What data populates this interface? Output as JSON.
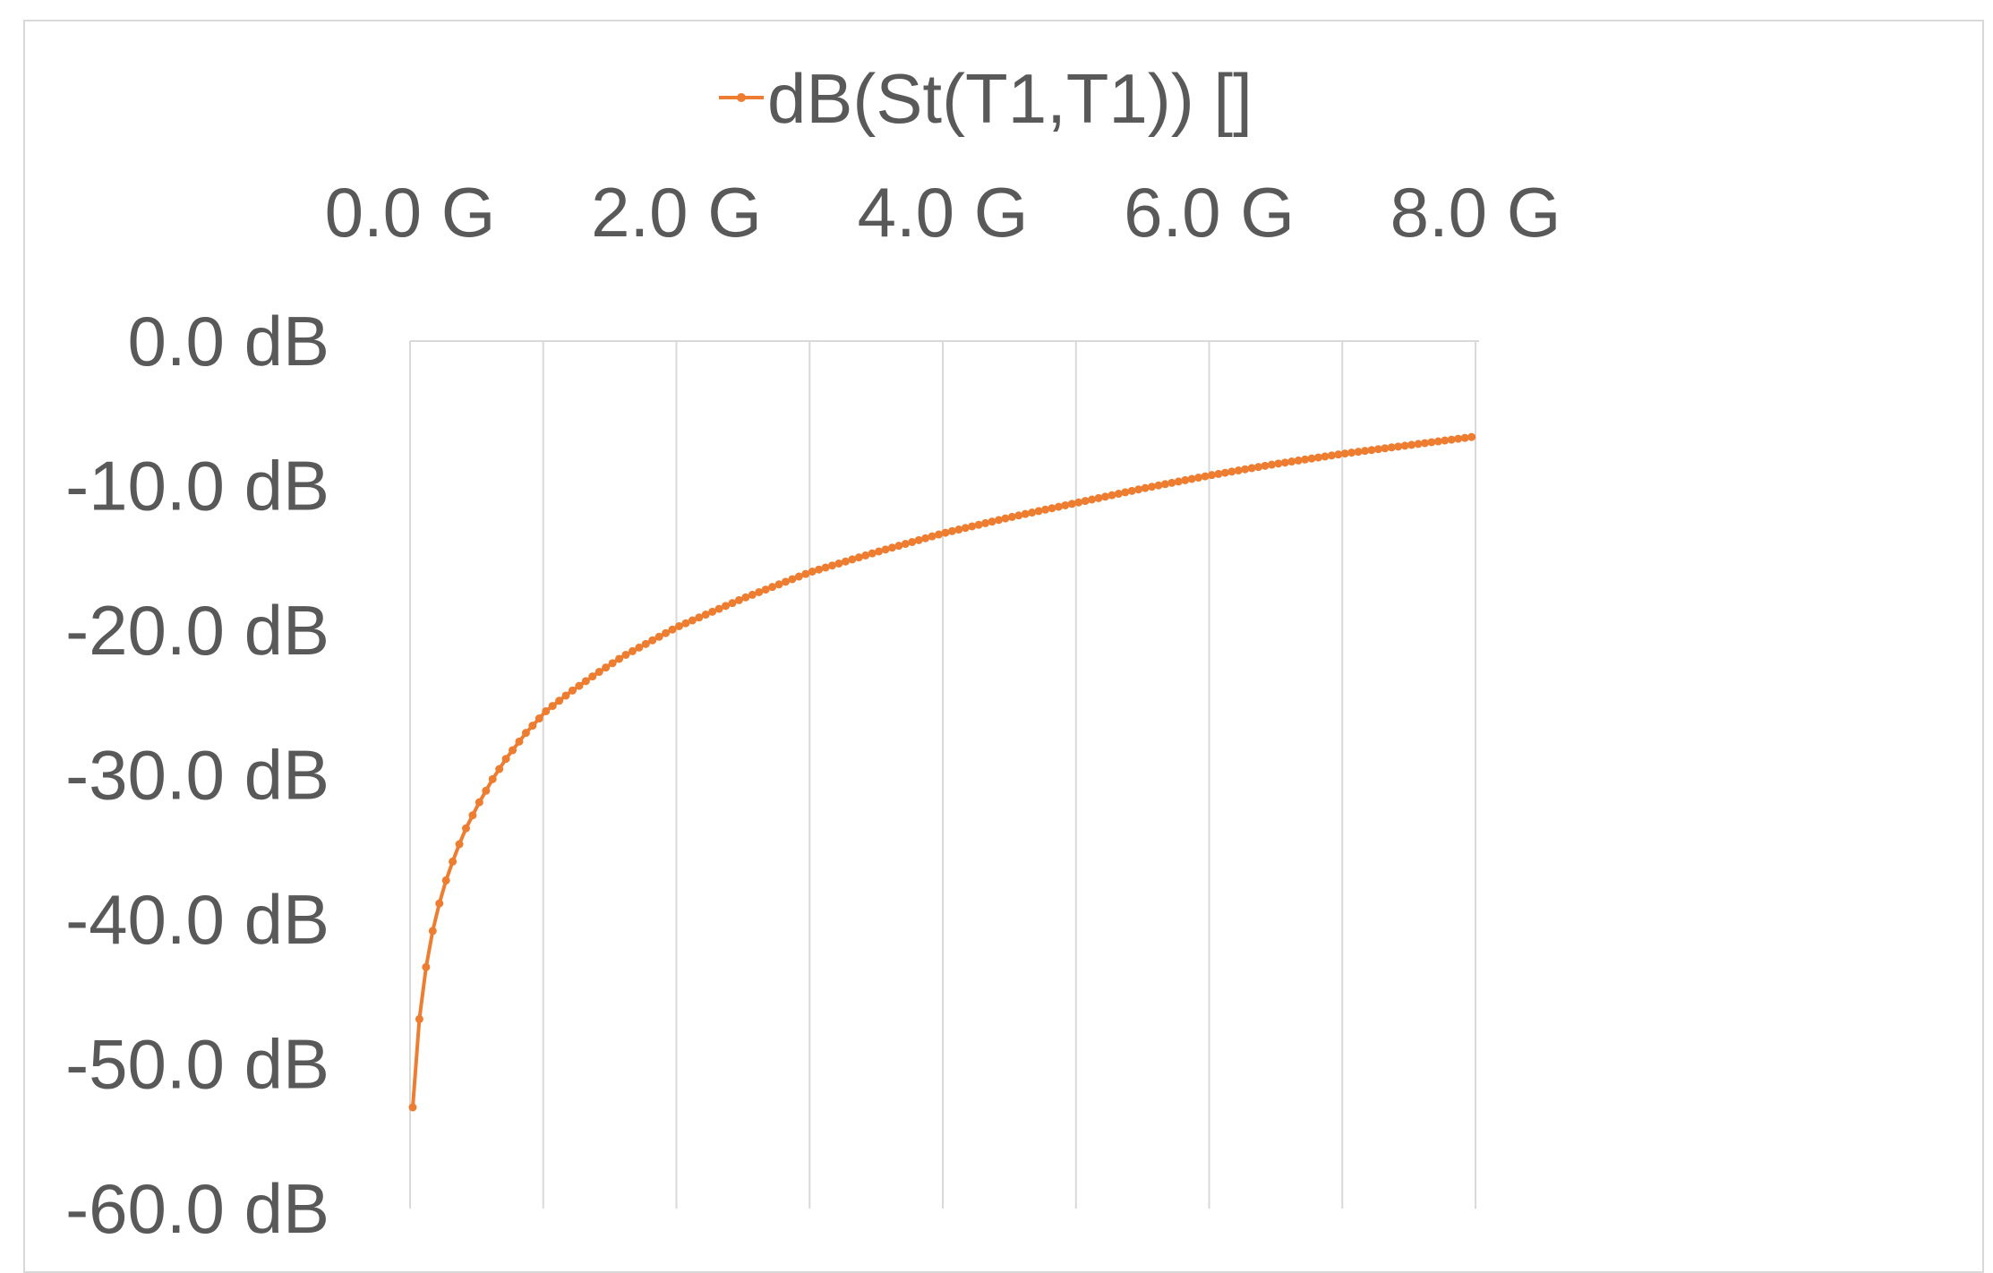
{
  "chart_data": {
    "type": "line",
    "title": "",
    "xlabel": "",
    "ylabel": "",
    "x_axis_position": "top",
    "xlim": [
      0.0,
      8.0
    ],
    "ylim": [
      -60.0,
      0.0
    ],
    "x_ticks": [
      0,
      1,
      2,
      3,
      4,
      5,
      6,
      7,
      8
    ],
    "x_tick_labels": [
      "0.0 G",
      "2.0 G",
      "4.0 G",
      "6.0 G",
      "8.0 G"
    ],
    "x_tick_label_values": [
      0,
      2,
      4,
      6,
      8
    ],
    "y_ticks": [
      0,
      -10,
      -20,
      -30,
      -40,
      -50,
      -60
    ],
    "y_tick_labels": [
      "0.0 dB",
      "-10.0 dB",
      "-20.0 dB",
      "-30.0 dB",
      "-40.0 dB",
      "-50.0 dB",
      "-60.0 dB"
    ],
    "grid": {
      "vertical": true,
      "horizontal": false
    },
    "legend": {
      "position": "top",
      "entries": [
        "dB(St(T1,T1)) []"
      ]
    },
    "series": [
      {
        "name": "dB(St(T1,T1)) []",
        "color": "#ED7D31",
        "marker": "circle",
        "x": [
          0.02,
          0.07,
          0.12,
          0.17,
          0.22,
          0.27,
          0.32,
          0.37,
          0.42,
          0.47,
          0.52,
          0.57,
          0.62,
          0.67,
          0.72,
          0.77,
          0.82,
          0.87,
          0.92,
          0.97,
          1.02,
          1.2,
          1.4,
          1.6,
          1.8,
          2.0,
          2.5,
          3.0,
          3.5,
          4.0,
          4.5,
          5.0,
          5.5,
          6.0,
          6.5,
          7.0,
          7.5,
          8.0
        ],
        "y": [
          -53.0,
          -46.9,
          -43.3,
          -40.8,
          -38.9,
          -37.3,
          -36.0,
          -34.8,
          -33.7,
          -32.8,
          -31.9,
          -31.1,
          -30.3,
          -29.6,
          -28.9,
          -28.3,
          -27.7,
          -27.1,
          -26.6,
          -26.1,
          -25.6,
          -24.3,
          -23.0,
          -21.8,
          -20.8,
          -19.8,
          -17.8,
          -16.0,
          -14.6,
          -13.3,
          -12.2,
          -11.2,
          -10.2,
          -9.3,
          -8.5,
          -7.8,
          -7.2,
          -6.6
        ]
      }
    ]
  }
}
